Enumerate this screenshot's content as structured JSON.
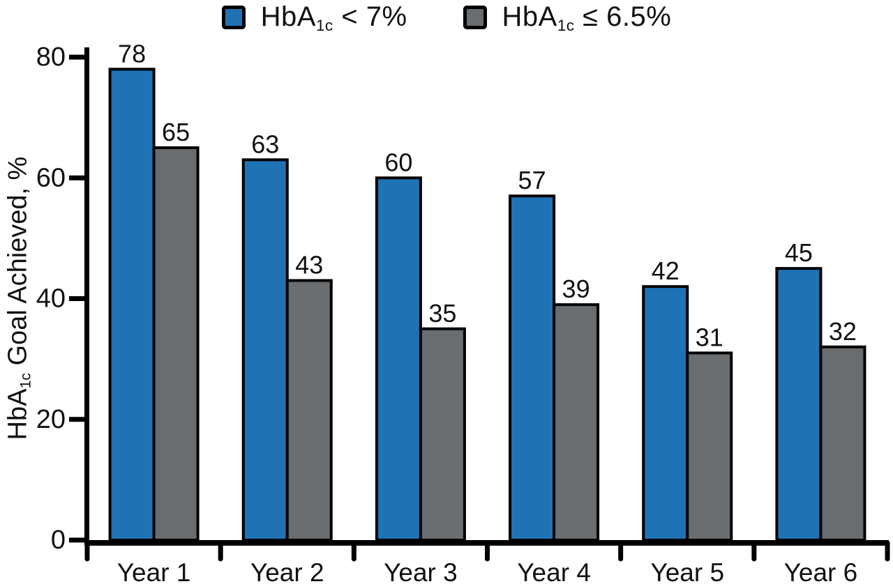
{
  "chart_data": {
    "type": "bar",
    "title": "",
    "categories": [
      "Year 1",
      "Year 2",
      "Year 3",
      "Year 4",
      "Year 5",
      "Year 6"
    ],
    "series": [
      {
        "name_prefix": "HbA",
        "name_sub": "1c",
        "name_suffix": " < 7%",
        "color": "#1f73b5",
        "values": [
          78,
          63,
          60,
          57,
          42,
          45
        ]
      },
      {
        "name_prefix": "HbA",
        "name_sub": "1c",
        "name_suffix": " ≤ 6.5%",
        "color": "#6a6d70",
        "values": [
          65,
          43,
          35,
          39,
          31,
          32
        ]
      }
    ],
    "value_labels": true,
    "ylabel_prefix": "HbA",
    "ylabel_sub": "1c",
    "ylabel_suffix": " Goal Achieved, %",
    "xlabel": "",
    "ylim": [
      0,
      80
    ],
    "yticks": [
      0,
      20,
      40,
      60,
      80
    ],
    "grid": false,
    "legend_position": "top-center",
    "axis_color": "#000000",
    "bar_outline_color": "#000000",
    "label_color": "#111111"
  }
}
